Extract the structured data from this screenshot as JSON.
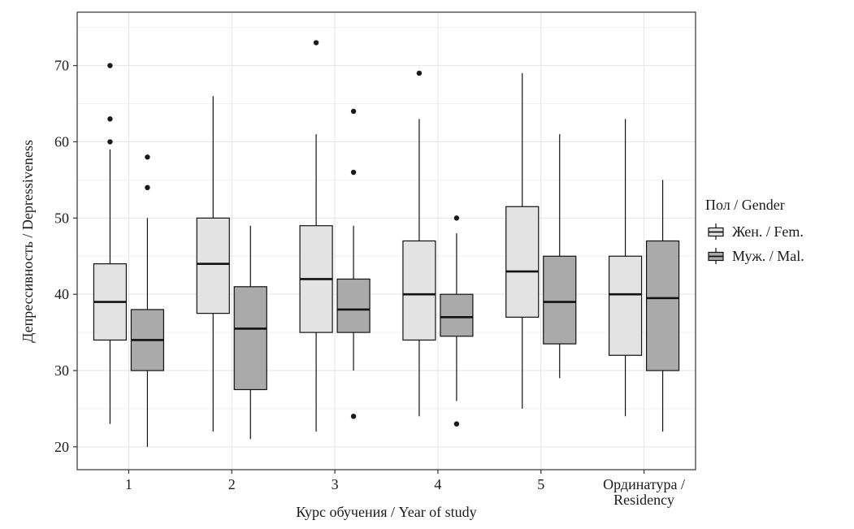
{
  "chart_data": {
    "type": "boxplot",
    "title": "",
    "xlabel": "Курс обучения / Year of study",
    "ylabel": "Депрессивность / Depressiveness",
    "categories": [
      "1",
      "2",
      "3",
      "4",
      "5",
      "Ординатура /\nResidency"
    ],
    "ylim": [
      17,
      77
    ],
    "yticks": [
      20,
      30,
      40,
      50,
      60,
      70
    ],
    "grid": true,
    "legend": {
      "title": "Пол / Gender",
      "position": "right",
      "entries": [
        {
          "label": "Жен. / Fem.",
          "color": "#e3e3e3"
        },
        {
          "label": "Муж. / Mal.",
          "color": "#aaaaaa"
        }
      ]
    },
    "colors": {
      "female_fill": "#e3e3e3",
      "male_fill": "#aaaaaa",
      "stroke": "#111111",
      "grid_major": "#e4e4e4",
      "grid_minor": "#f1f1f1"
    },
    "series": [
      {
        "name": "Жен. / Fem.",
        "color": "#e3e3e3",
        "boxes": [
          {
            "category": "1",
            "low": 23,
            "q1": 34,
            "median": 39,
            "q3": 44,
            "high": 59,
            "outliers": [
              60,
              63,
              70
            ]
          },
          {
            "category": "2",
            "low": 22,
            "q1": 37.5,
            "median": 44,
            "q3": 50,
            "high": 66,
            "outliers": []
          },
          {
            "category": "3",
            "low": 22,
            "q1": 35,
            "median": 42,
            "q3": 49,
            "high": 61,
            "outliers": [
              73
            ]
          },
          {
            "category": "4",
            "low": 24,
            "q1": 34,
            "median": 40,
            "q3": 47,
            "high": 63,
            "outliers": [
              69
            ]
          },
          {
            "category": "5",
            "low": 25,
            "q1": 37,
            "median": 43,
            "q3": 51.5,
            "high": 69,
            "outliers": []
          },
          {
            "category": "Ординатура / Residency",
            "low": 24,
            "q1": 32,
            "median": 40,
            "q3": 45,
            "high": 63,
            "outliers": []
          }
        ]
      },
      {
        "name": "Муж. / Mal.",
        "color": "#aaaaaa",
        "boxes": [
          {
            "category": "1",
            "low": 20,
            "q1": 30,
            "median": 34,
            "q3": 38,
            "high": 50,
            "outliers": [
              54,
              58
            ]
          },
          {
            "category": "2",
            "low": 21,
            "q1": 27.5,
            "median": 35.5,
            "q3": 41,
            "high": 49,
            "outliers": []
          },
          {
            "category": "3",
            "low": 30,
            "q1": 35,
            "median": 38,
            "q3": 42,
            "high": 49,
            "outliers": [
              24,
              56,
              64
            ]
          },
          {
            "category": "4",
            "low": 26,
            "q1": 34.5,
            "median": 37,
            "q3": 40,
            "high": 48,
            "outliers": [
              23,
              50
            ]
          },
          {
            "category": "5",
            "low": 29,
            "q1": 33.5,
            "median": 39,
            "q3": 45,
            "high": 61,
            "outliers": []
          },
          {
            "category": "Ординатура / Residency",
            "low": 22,
            "q1": 30,
            "median": 39.5,
            "q3": 47,
            "high": 55,
            "outliers": []
          }
        ]
      }
    ]
  }
}
